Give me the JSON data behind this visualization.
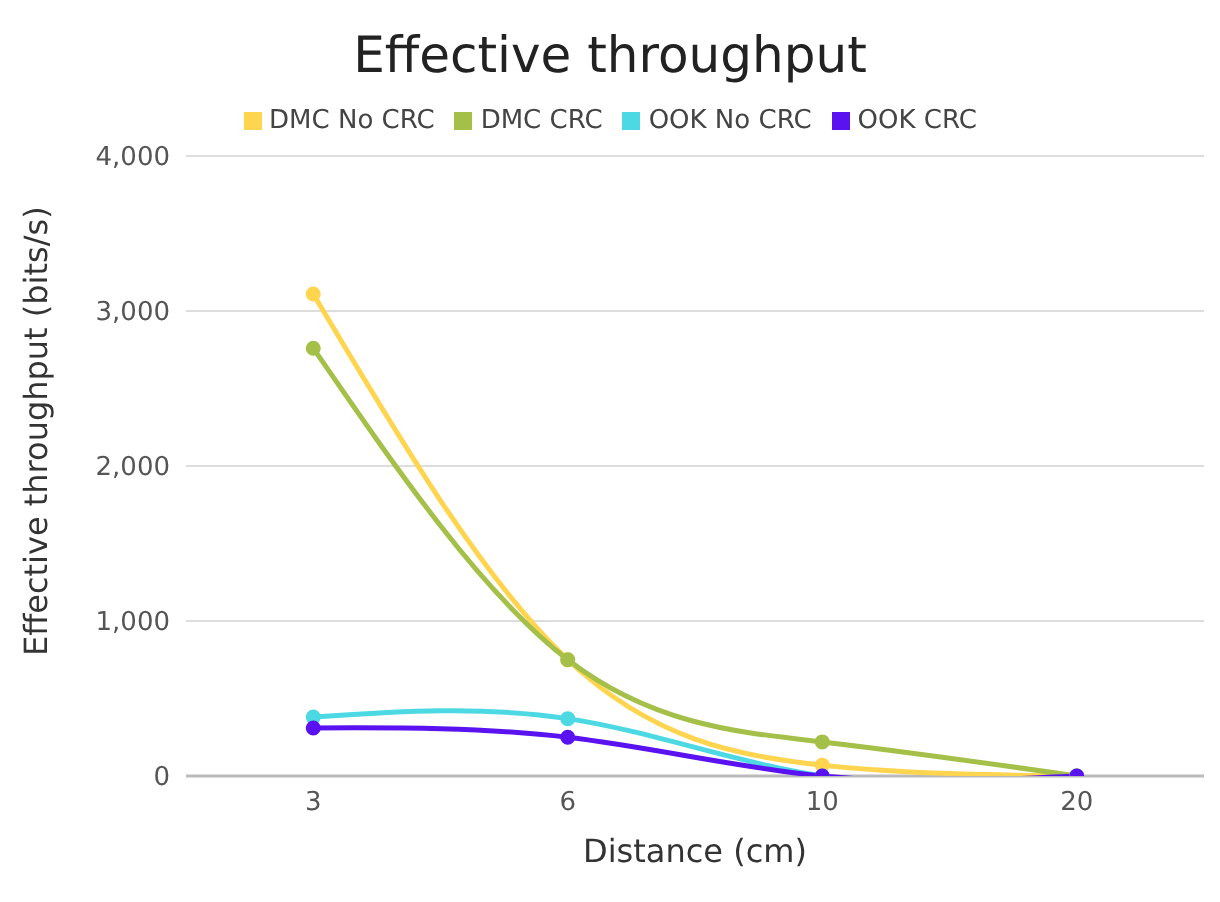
{
  "chart_data": {
    "type": "line",
    "title": "Effective throughput",
    "xlabel": "Distance (cm)",
    "ylabel": "Effective throughput (bits/s)",
    "categories": [
      "3",
      "6",
      "10",
      "20"
    ],
    "series": [
      {
        "name": "DMC No CRC",
        "color": "#ffd54f",
        "values": [
          3110,
          750,
          70,
          0
        ]
      },
      {
        "name": "DMC CRC",
        "color": "#a5c049",
        "values": [
          2760,
          750,
          220,
          0
        ]
      },
      {
        "name": "OOK No CRC",
        "color": "#4dd9e4",
        "values": [
          380,
          370,
          0,
          0
        ]
      },
      {
        "name": "OOK CRC",
        "color": "#5b12f0",
        "values": [
          310,
          250,
          0,
          0
        ]
      }
    ],
    "ylim": [
      0,
      4000
    ],
    "yticks": [
      0,
      {
        "value": 1000,
        "label": "1,000"
      },
      {
        "value": 2000,
        "label": "2,000"
      },
      {
        "value": 3000,
        "label": "3,000"
      },
      {
        "value": 4000,
        "label": "4,000"
      }
    ],
    "grid": "y",
    "legend": "top",
    "marker": "circle"
  }
}
